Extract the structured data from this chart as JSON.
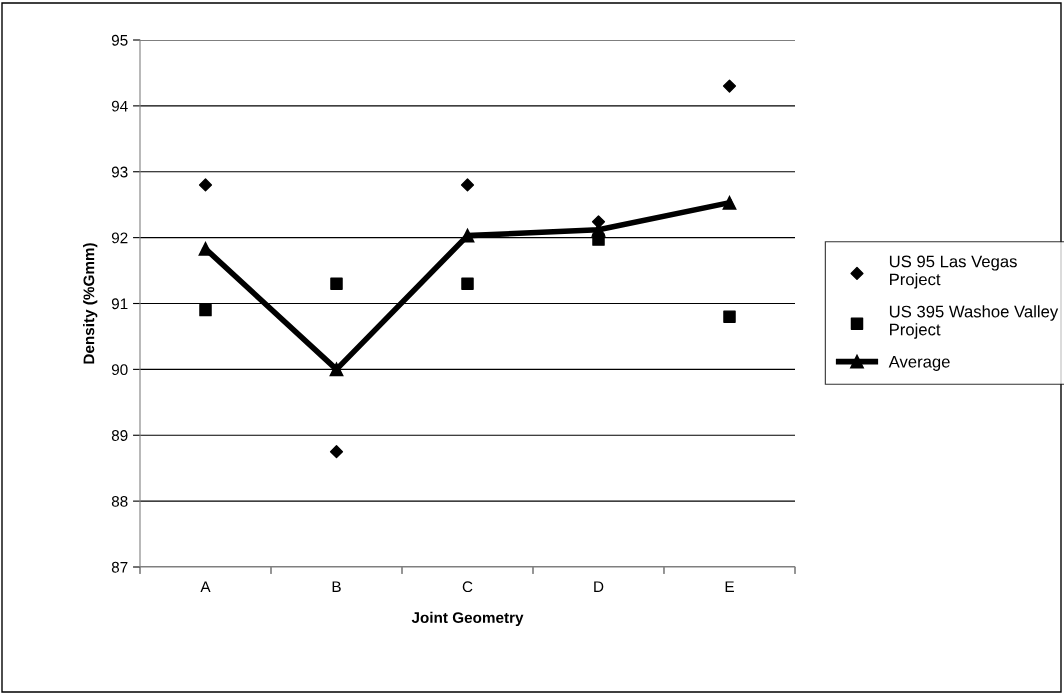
{
  "chart_data": {
    "type": "scatter",
    "xlabel": "Joint Geometry",
    "ylabel": "Density (%Gmm)",
    "categories": [
      "A",
      "B",
      "C",
      "D",
      "E"
    ],
    "series": [
      {
        "name": "US 95 Las Vegas Project",
        "color": "#000000",
        "marker": "diamond",
        "values": [
          92.8,
          88.75,
          92.8,
          92.24,
          94.3
        ]
      },
      {
        "name": "US 395 Washoe Valley Project",
        "color": "#000000",
        "marker": "square",
        "values": [
          90.9,
          91.3,
          91.3,
          91.97,
          90.8
        ]
      },
      {
        "name": "Average",
        "type": "line",
        "color": "#000000",
        "marker": "triangle",
        "line_style": "solid",
        "values": [
          91.83,
          90.0,
          92.03,
          92.12,
          92.53
        ]
      }
    ],
    "ylim": [
      87,
      95
    ],
    "yticks": [
      87,
      88,
      89,
      90,
      91,
      92,
      93,
      94,
      95
    ],
    "grid": "y",
    "legend": "right"
  }
}
